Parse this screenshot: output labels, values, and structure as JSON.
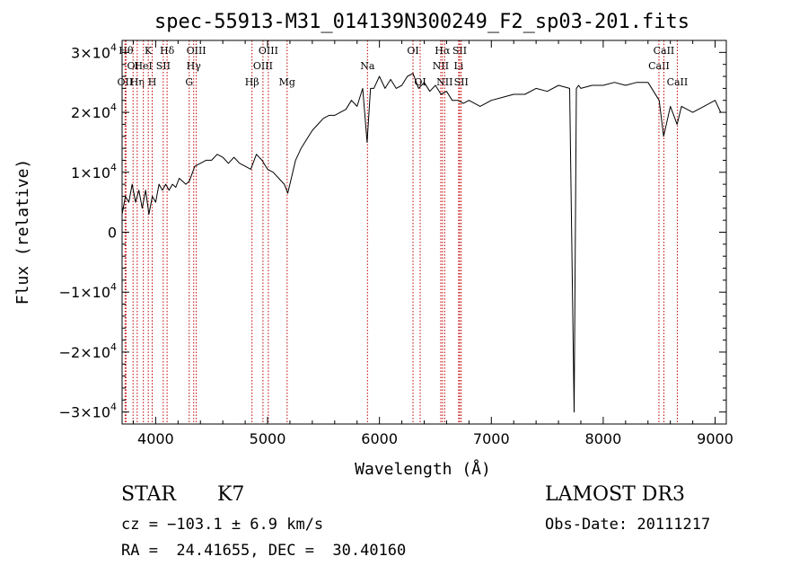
{
  "chart_data": {
    "type": "line",
    "title": "spec-55913-M31_014139N300249_F2_sp03-201.fits",
    "xlabel": "Wavelength (Å)",
    "ylabel": "Flux (relative)",
    "xlim": [
      3700,
      9100
    ],
    "ylim": [
      -32000,
      32000
    ],
    "grid": false,
    "x_ticks": [
      {
        "value": 4000,
        "label": "4000"
      },
      {
        "value": 5000,
        "label": "5000"
      },
      {
        "value": 6000,
        "label": "6000"
      },
      {
        "value": 7000,
        "label": "7000"
      },
      {
        "value": 8000,
        "label": "8000"
      },
      {
        "value": 9000,
        "label": "9000"
      }
    ],
    "y_ticks": [
      {
        "value": 30000,
        "mantissa": "3×10",
        "exp": "4"
      },
      {
        "value": 20000,
        "mantissa": "2×10",
        "exp": "4"
      },
      {
        "value": 10000,
        "mantissa": "1×10",
        "exp": "4"
      },
      {
        "value": 0,
        "mantissa": "0",
        "exp": ""
      },
      {
        "value": -10000,
        "mantissa": "−1×10",
        "exp": "4"
      },
      {
        "value": -20000,
        "mantissa": "−2×10",
        "exp": "4"
      },
      {
        "value": -30000,
        "mantissa": "−3×10",
        "exp": "4"
      }
    ],
    "series": [
      {
        "x": [
          3700,
          3730,
          3760,
          3790,
          3820,
          3850,
          3880,
          3910,
          3940,
          3970,
          4000,
          4030,
          4060,
          4090,
          4120,
          4150,
          4180,
          4210,
          4240,
          4270,
          4300,
          4350,
          4400,
          4450,
          4500,
          4550,
          4600,
          4650,
          4700,
          4750,
          4800,
          4850,
          4900,
          4950,
          5000,
          5050,
          5100,
          5150,
          5180,
          5200,
          5250,
          5300,
          5350,
          5400,
          5450,
          5500,
          5550,
          5600,
          5650,
          5700,
          5750,
          5800,
          5850,
          5890,
          5920,
          5950,
          6000,
          6050,
          6100,
          6150,
          6200,
          6250,
          6300,
          6350,
          6400,
          6450,
          6500,
          6550,
          6600,
          6650,
          6700,
          6750,
          6800,
          6900,
          7000,
          7100,
          7200,
          7300,
          7400,
          7500,
          7600,
          7700,
          7740,
          7760,
          7780,
          7800,
          7900,
          8000,
          8100,
          8200,
          8300,
          8400,
          8500,
          8540,
          8600,
          8660,
          8700,
          8800,
          8900,
          9000,
          9050
        ],
        "y": [
          3000,
          6000,
          5000,
          8000,
          5000,
          7000,
          4000,
          7000,
          3000,
          6000,
          5000,
          8000,
          7000,
          8000,
          7000,
          8000,
          7500,
          9000,
          8500,
          8000,
          8500,
          11000,
          11500,
          12000,
          12000,
          13000,
          12500,
          11500,
          12500,
          11500,
          11000,
          10500,
          13000,
          12000,
          10500,
          10000,
          9000,
          8000,
          6500,
          8000,
          12000,
          14000,
          15500,
          17000,
          18000,
          19000,
          19500,
          19500,
          20000,
          20500,
          22000,
          21000,
          24000,
          15000,
          24000,
          24000,
          26000,
          24000,
          25500,
          24000,
          24500,
          26000,
          26500,
          24000,
          25000,
          23500,
          24500,
          23000,
          23500,
          22000,
          22000,
          21500,
          22000,
          21000,
          22000,
          22500,
          23000,
          23000,
          24000,
          23500,
          24500,
          24000,
          -30000,
          24000,
          24500,
          24000,
          24500,
          24500,
          25000,
          24500,
          25000,
          25000,
          22000,
          16000,
          21000,
          18000,
          21000,
          20000,
          21000,
          22000,
          20000
        ]
      }
    ],
    "lines": [
      {
        "x": 3735,
        "label": "Hθ",
        "row": 0
      },
      {
        "x": 3727,
        "label": "OII",
        "row": 2
      },
      {
        "x": 3798,
        "label": "OI",
        "row": 1
      },
      {
        "x": 3835,
        "label": "Hη",
        "row": 2
      },
      {
        "x": 3890,
        "label": "HeI",
        "row": 1
      },
      {
        "x": 3934,
        "label": "K",
        "row": 0
      },
      {
        "x": 3969,
        "label": "H",
        "row": 2
      },
      {
        "x": 4068,
        "label": "SII",
        "row": 1
      },
      {
        "x": 4102,
        "label": "Hδ",
        "row": 0
      },
      {
        "x": 4300,
        "label": "G",
        "row": 2
      },
      {
        "x": 4340,
        "label": "Hγ",
        "row": 1
      },
      {
        "x": 4363,
        "label": "OIII",
        "row": 0
      },
      {
        "x": 4861,
        "label": "Hβ",
        "row": 2
      },
      {
        "x": 4959,
        "label": "OIII",
        "row": 1
      },
      {
        "x": 5007,
        "label": "OIII",
        "row": 0
      },
      {
        "x": 5175,
        "label": "Mg",
        "row": 2
      },
      {
        "x": 5893,
        "label": "Na",
        "row": 1
      },
      {
        "x": 6300,
        "label": "OI",
        "row": 0
      },
      {
        "x": 6364,
        "label": "OI",
        "row": 2
      },
      {
        "x": 6548,
        "label": "NII",
        "row": 1
      },
      {
        "x": 6563,
        "label": "Hα",
        "row": 0
      },
      {
        "x": 6583,
        "label": "NII",
        "row": 2
      },
      {
        "x": 6708,
        "label": "Li",
        "row": 1
      },
      {
        "x": 6717,
        "label": "SII",
        "row": 0
      },
      {
        "x": 6731,
        "label": "SII",
        "row": 2
      },
      {
        "x": 8498,
        "label": "CaII",
        "row": 1
      },
      {
        "x": 8542,
        "label": "CaII",
        "row": 0
      },
      {
        "x": 8662,
        "label": "CaII",
        "row": 2
      }
    ]
  },
  "info": {
    "class_label": "STAR",
    "subclass": "K7",
    "cz": "cz = −103.1 ± 6.9 km/s",
    "coords": "RA =  24.41655, DEC =  30.40160",
    "survey": "LAMOST DR3",
    "obs_date": "Obs-Date: 20111217"
  }
}
